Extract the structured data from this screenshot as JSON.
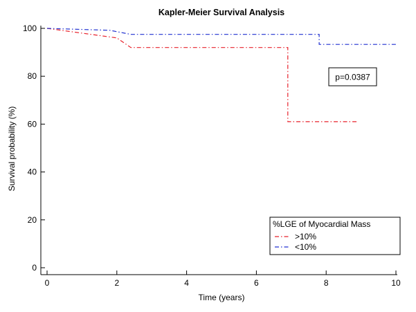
{
  "chart_data": {
    "type": "line",
    "step": true,
    "title": "Kapler-Meier Survival Analysis",
    "xlabel": "Time (years)",
    "ylabel": "Survival probability (%)",
    "xlim": [
      0,
      10
    ],
    "ylim": [
      0,
      100
    ],
    "x_ticks": [
      0,
      2,
      4,
      6,
      8,
      10
    ],
    "x_tick_labels": [
      "0",
      "2",
      "4",
      "6",
      "8",
      "10"
    ],
    "y_ticks": [
      0,
      20,
      40,
      60,
      80,
      100
    ],
    "y_tick_labels": [
      "0",
      "20",
      "40",
      "60",
      "80",
      "100"
    ],
    "grid": false,
    "legend": {
      "title": "%LGE of Myocardial Mass",
      "placement": "bottom-right"
    },
    "series": [
      {
        "name": ">10%",
        "color": "#e8202a",
        "line_style": "dash-dot",
        "points": [
          [
            0,
            100
          ],
          [
            2.0,
            96
          ],
          [
            2.4,
            92
          ],
          [
            6.9,
            92
          ],
          [
            6.9,
            61
          ],
          [
            8.9,
            61
          ]
        ]
      },
      {
        "name": "<10%",
        "color": "#1f2fd0",
        "line_style": "dash-dot",
        "points": [
          [
            0,
            100
          ],
          [
            1.8,
            99.2
          ],
          [
            2.4,
            97.5
          ],
          [
            7.8,
            97.5
          ],
          [
            7.8,
            93.3
          ],
          [
            10.0,
            93.3
          ]
        ]
      }
    ],
    "annotations": [
      {
        "text": "p=0.0387",
        "x": 9.3,
        "y": 85
      }
    ]
  }
}
